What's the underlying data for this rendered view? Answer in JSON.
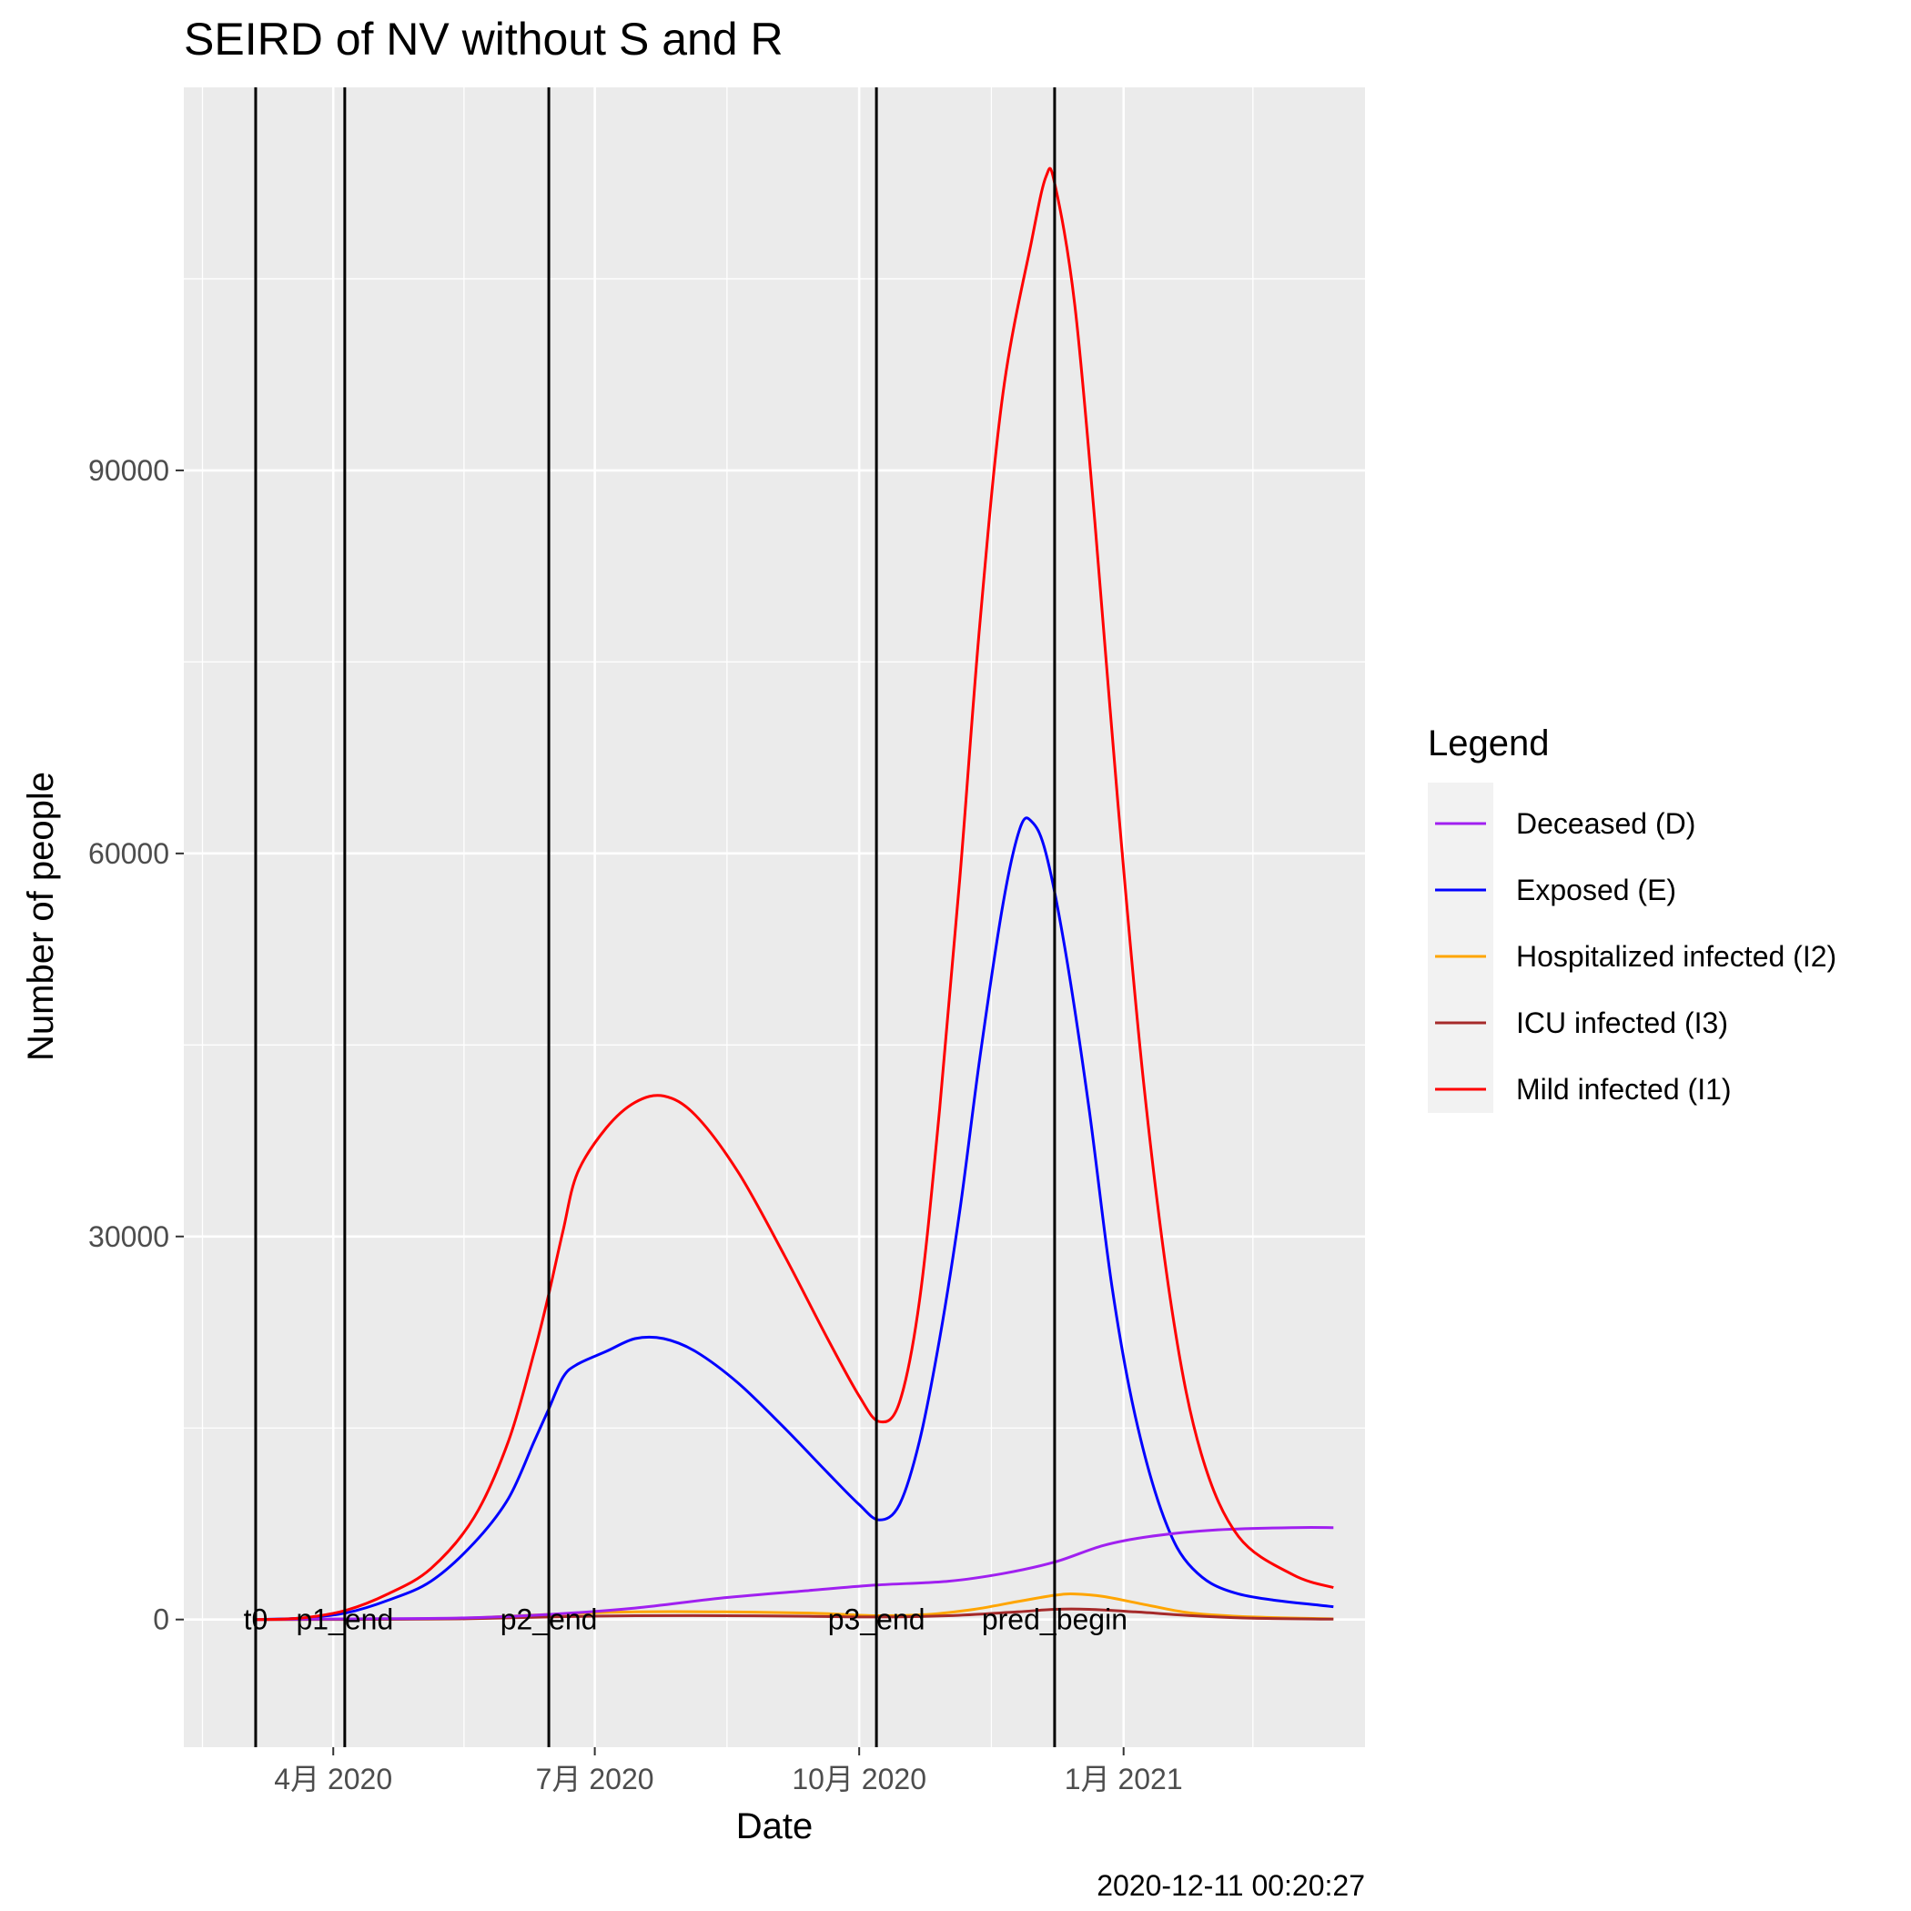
{
  "chart_data": {
    "type": "line",
    "title": "SEIRD of NV without S and R",
    "xlabel": "Date",
    "ylabel": "Number of people",
    "timestamp": "2020-12-11 00:20:27",
    "x_range": [
      "2020-02-09",
      "2021-03-26"
    ],
    "ylim": [
      -10000,
      120000
    ],
    "y_ticks": [
      0,
      30000,
      60000,
      90000
    ],
    "y_tick_labels": [
      "0",
      "30000",
      "60000",
      "90000"
    ],
    "x_ticks": [
      {
        "date": "2020-04-01",
        "label": "4月 2020"
      },
      {
        "date": "2020-07-01",
        "label": "7月 2020"
      },
      {
        "date": "2020-10-01",
        "label": "10月 2020"
      },
      {
        "date": "2021-01-01",
        "label": "1月 2021"
      }
    ],
    "grid": true,
    "legend_title": "Legend",
    "legend_position": "right",
    "vlines": [
      {
        "date": "2020-03-05",
        "label": "t0"
      },
      {
        "date": "2020-04-05",
        "label": "p1_end"
      },
      {
        "date": "2020-06-15",
        "label": "p2_end"
      },
      {
        "date": "2020-10-07",
        "label": "p3_end"
      },
      {
        "date": "2020-12-08",
        "label": "pred_begin"
      }
    ],
    "series": [
      {
        "name": "Deceased (D)",
        "color": "#A020F0",
        "points": [
          [
            "2020-03-05",
            0
          ],
          [
            "2020-04-05",
            50
          ],
          [
            "2020-05-15",
            120
          ],
          [
            "2020-06-15",
            400
          ],
          [
            "2020-07-15",
            900
          ],
          [
            "2020-08-15",
            1700
          ],
          [
            "2020-09-15",
            2300
          ],
          [
            "2020-10-07",
            2700
          ],
          [
            "2020-11-01",
            3000
          ],
          [
            "2020-11-20",
            3600
          ],
          [
            "2020-12-08",
            4500
          ],
          [
            "2020-12-25",
            5800
          ],
          [
            "2021-01-10",
            6500
          ],
          [
            "2021-02-01",
            7000
          ],
          [
            "2021-03-01",
            7200
          ],
          [
            "2021-03-15",
            7200
          ]
        ]
      },
      {
        "name": "Exposed (E)",
        "color": "#0000FF",
        "points": [
          [
            "2020-03-05",
            0
          ],
          [
            "2020-03-20",
            100
          ],
          [
            "2020-04-05",
            500
          ],
          [
            "2020-04-20",
            1500
          ],
          [
            "2020-05-05",
            3000
          ],
          [
            "2020-05-20",
            6000
          ],
          [
            "2020-06-01",
            9500
          ],
          [
            "2020-06-10",
            14000
          ],
          [
            "2020-06-15",
            16500
          ],
          [
            "2020-06-20",
            19000
          ],
          [
            "2020-06-25",
            20000
          ],
          [
            "2020-07-05",
            21000
          ],
          [
            "2020-07-15",
            22000
          ],
          [
            "2020-07-25",
            22000
          ],
          [
            "2020-08-05",
            21000
          ],
          [
            "2020-08-20",
            18500
          ],
          [
            "2020-09-05",
            15000
          ],
          [
            "2020-09-20",
            11500
          ],
          [
            "2020-10-01",
            9000
          ],
          [
            "2020-10-08",
            7800
          ],
          [
            "2020-10-15",
            9000
          ],
          [
            "2020-10-22",
            14000
          ],
          [
            "2020-10-29",
            22000
          ],
          [
            "2020-11-05",
            32000
          ],
          [
            "2020-11-12",
            44000
          ],
          [
            "2020-11-20",
            56000
          ],
          [
            "2020-11-26",
            62000
          ],
          [
            "2020-11-30",
            62500
          ],
          [
            "2020-12-05",
            60000
          ],
          [
            "2020-12-12",
            52000
          ],
          [
            "2020-12-20",
            40000
          ],
          [
            "2020-12-28",
            26000
          ],
          [
            "2021-01-05",
            16000
          ],
          [
            "2021-01-15",
            8000
          ],
          [
            "2021-01-25",
            4000
          ],
          [
            "2021-02-10",
            2000
          ],
          [
            "2021-03-15",
            1000
          ]
        ]
      },
      {
        "name": "Hospitalized infected (I2)",
        "color": "#FFA500",
        "points": [
          [
            "2020-03-05",
            0
          ],
          [
            "2020-04-05",
            20
          ],
          [
            "2020-05-15",
            100
          ],
          [
            "2020-06-15",
            400
          ],
          [
            "2020-07-15",
            600
          ],
          [
            "2020-08-15",
            600
          ],
          [
            "2020-09-15",
            500
          ],
          [
            "2020-10-07",
            300
          ],
          [
            "2020-10-25",
            400
          ],
          [
            "2020-11-10",
            800
          ],
          [
            "2020-11-25",
            1400
          ],
          [
            "2020-12-08",
            1900
          ],
          [
            "2020-12-15",
            2000
          ],
          [
            "2020-12-25",
            1800
          ],
          [
            "2021-01-10",
            1100
          ],
          [
            "2021-01-25",
            500
          ],
          [
            "2021-02-15",
            200
          ],
          [
            "2021-03-15",
            50
          ]
        ]
      },
      {
        "name": "ICU infected (I3)",
        "color": "#A52A2A",
        "points": [
          [
            "2020-03-05",
            0
          ],
          [
            "2020-04-05",
            10
          ],
          [
            "2020-05-15",
            50
          ],
          [
            "2020-06-15",
            200
          ],
          [
            "2020-07-15",
            300
          ],
          [
            "2020-08-15",
            300
          ],
          [
            "2020-09-15",
            250
          ],
          [
            "2020-10-07",
            200
          ],
          [
            "2020-11-01",
            300
          ],
          [
            "2020-11-25",
            600
          ],
          [
            "2020-12-08",
            800
          ],
          [
            "2020-12-20",
            800
          ],
          [
            "2021-01-05",
            600
          ],
          [
            "2021-01-25",
            300
          ],
          [
            "2021-02-15",
            100
          ],
          [
            "2021-03-15",
            30
          ]
        ]
      },
      {
        "name": "Mild infected (I1)",
        "color": "#FF0000",
        "points": [
          [
            "2020-03-05",
            0
          ],
          [
            "2020-03-20",
            100
          ],
          [
            "2020-04-05",
            700
          ],
          [
            "2020-04-20",
            2000
          ],
          [
            "2020-05-05",
            4000
          ],
          [
            "2020-05-20",
            8000
          ],
          [
            "2020-06-01",
            14000
          ],
          [
            "2020-06-10",
            21000
          ],
          [
            "2020-06-15",
            25500
          ],
          [
            "2020-06-20",
            30500
          ],
          [
            "2020-06-25",
            35000
          ],
          [
            "2020-07-05",
            38500
          ],
          [
            "2020-07-15",
            40500
          ],
          [
            "2020-07-25",
            41000
          ],
          [
            "2020-08-05",
            39500
          ],
          [
            "2020-08-20",
            35000
          ],
          [
            "2020-09-05",
            28500
          ],
          [
            "2020-09-20",
            22000
          ],
          [
            "2020-10-01",
            17500
          ],
          [
            "2020-10-08",
            15500
          ],
          [
            "2020-10-15",
            17000
          ],
          [
            "2020-10-22",
            25000
          ],
          [
            "2020-10-29",
            40000
          ],
          [
            "2020-11-05",
            58000
          ],
          [
            "2020-11-12",
            78000
          ],
          [
            "2020-11-20",
            96000
          ],
          [
            "2020-11-30",
            108000
          ],
          [
            "2020-12-05",
            113000
          ],
          [
            "2020-12-08",
            112500
          ],
          [
            "2020-12-15",
            103000
          ],
          [
            "2020-12-22",
            86000
          ],
          [
            "2020-12-30",
            64000
          ],
          [
            "2021-01-08",
            42000
          ],
          [
            "2021-01-18",
            24000
          ],
          [
            "2021-01-28",
            13000
          ],
          [
            "2021-02-10",
            6500
          ],
          [
            "2021-03-01",
            3500
          ],
          [
            "2021-03-15",
            2500
          ]
        ]
      }
    ]
  }
}
